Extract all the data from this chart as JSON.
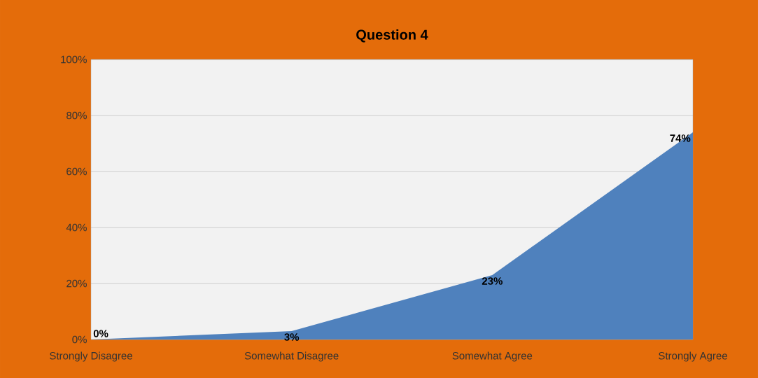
{
  "chart_data": {
    "type": "area",
    "title": "Question 4",
    "categories": [
      "Strongly Disagree",
      "Somewhat Disagree",
      "Somewhat Agree",
      "Strongly Agree"
    ],
    "values": [
      0,
      3,
      23,
      74
    ],
    "value_labels": [
      "0%",
      "3%",
      "23%",
      "74%"
    ],
    "color": "#4f81bd",
    "ylim": [
      0,
      100
    ],
    "yticks": [
      {
        "value": 0,
        "label": "0%"
      },
      {
        "value": 20,
        "label": "20%"
      },
      {
        "value": 40,
        "label": "40%"
      },
      {
        "value": 60,
        "label": "60%"
      },
      {
        "value": 80,
        "label": "80%"
      },
      {
        "value": 100,
        "label": "100%"
      }
    ],
    "grid": "y"
  }
}
